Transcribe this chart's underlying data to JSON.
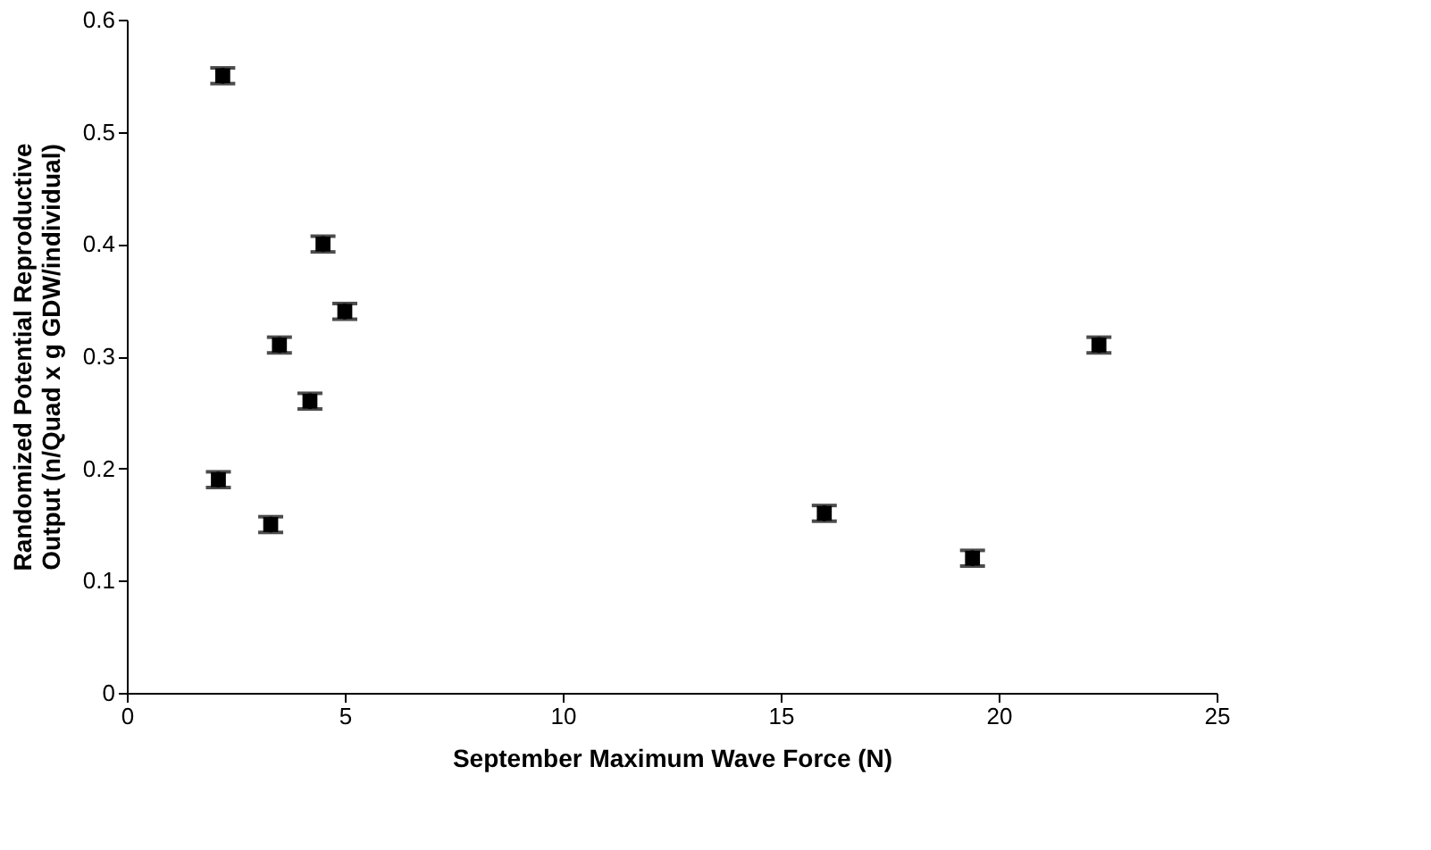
{
  "chart_data": {
    "type": "scatter",
    "xlabel": "September Maximum Wave Force (N)",
    "ylabel": "Randomized Potential Reproductive Output (n/Quad x g GDW/individual)",
    "x": [
      2.2,
      4.5,
      5.0,
      3.5,
      4.2,
      2.1,
      3.3,
      16.0,
      19.4,
      22.3
    ],
    "series": [
      {
        "color": "#000000",
        "values": [
          0.55,
          0.4,
          0.34,
          0.31,
          0.26,
          0.19,
          0.15,
          0.16,
          0.12,
          0.31
        ],
        "errors": [
          0.007,
          0.007,
          0.007,
          0.007,
          0.007,
          0.007,
          0.007,
          0.007,
          0.007,
          0.007
        ]
      }
    ],
    "xlim": [
      0,
      25
    ],
    "xticks": [
      0,
      5,
      10,
      15,
      20,
      25
    ],
    "ylim": [
      0,
      0.6
    ],
    "yticks": [
      0,
      0.1,
      0.2,
      0.3,
      0.4,
      0.5,
      0.6
    ],
    "marker": "square",
    "grid": false
  }
}
